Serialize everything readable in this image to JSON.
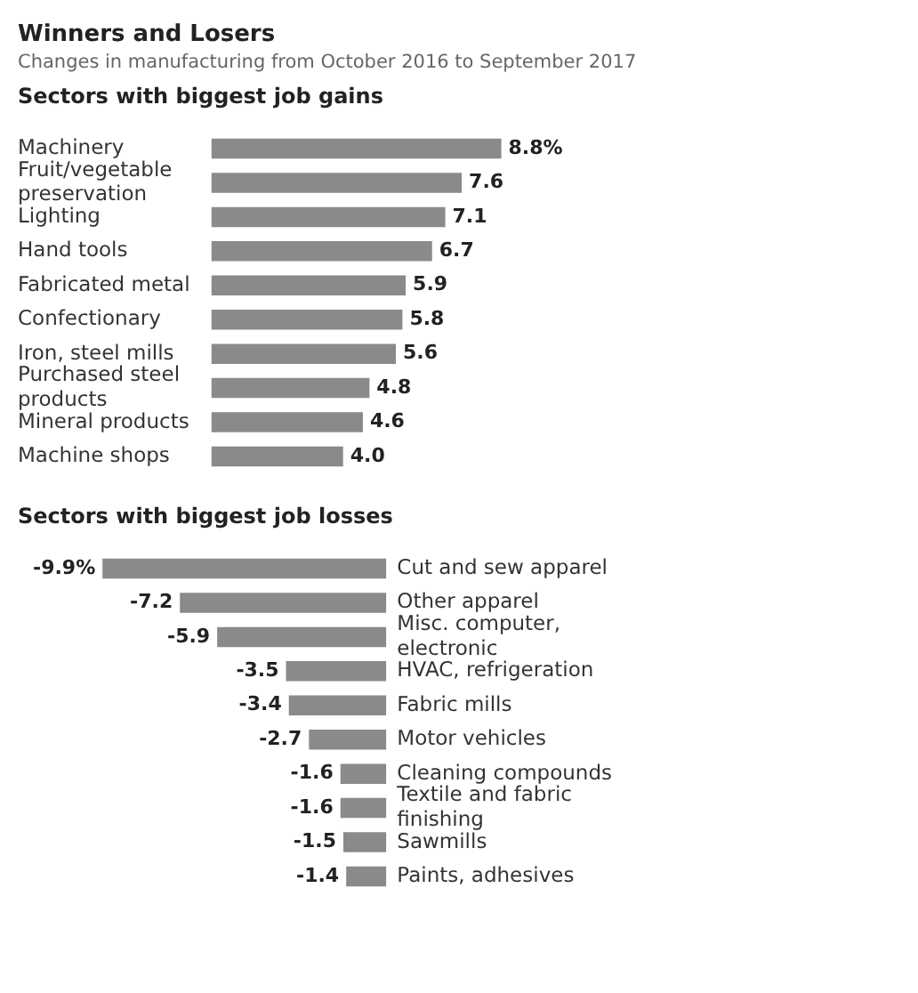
{
  "chart_data": [
    {
      "type": "bar",
      "orientation": "horizontal",
      "title": "Winners and Losers",
      "subtitle": "Changes in manufacturing from October 2016 to September 2017",
      "annotations": [
        "Sectors with biggest job gains"
      ],
      "categories": [
        "Machinery",
        "Fruit/vegetable preservation",
        "Lighting",
        "Hand tools",
        "Fabricated metal",
        "Confectionary",
        "Iron, steel mills",
        "Purchased steel products",
        "Mineral products",
        "Machine shops"
      ],
      "values": [
        8.8,
        7.6,
        7.1,
        6.7,
        5.9,
        5.8,
        5.6,
        4.8,
        4.6,
        4.0
      ],
      "value_labels": [
        "8.8%",
        "7.6",
        "7.1",
        "6.7",
        "5.9",
        "5.8",
        "5.6",
        "4.8",
        "4.6",
        "4.0"
      ],
      "color": "#8a8a8a"
    },
    {
      "type": "bar",
      "orientation": "horizontal",
      "title": "Sectors with biggest job losses",
      "categories": [
        "Cut and sew apparel",
        "Other apparel",
        "Misc. computer, electronic",
        "HVAC, refrigeration",
        "Fabric mills",
        "Motor vehicles",
        "Cleaning compounds",
        "Textile and fabric finishing",
        "Sawmills",
        "Paints, adhesives"
      ],
      "values": [
        -9.9,
        -7.2,
        -5.9,
        -3.5,
        -3.4,
        -2.7,
        -1.6,
        -1.6,
        -1.5,
        -1.4
      ],
      "value_labels": [
        "-9.9%",
        "-7.2",
        "-5.9",
        "-3.5",
        "-3.4",
        "-2.7",
        "-1.6",
        "-1.6",
        "-1.5",
        "-1.4"
      ],
      "color": "#8a8a8a"
    }
  ]
}
